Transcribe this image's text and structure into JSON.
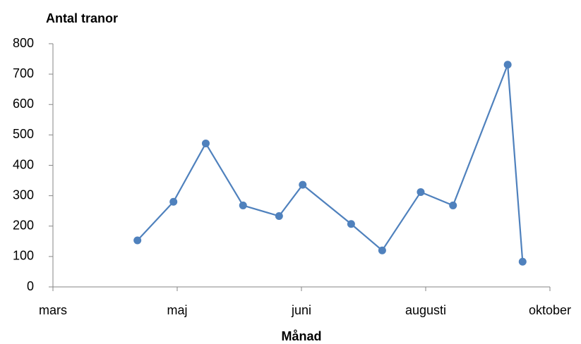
{
  "chart_data": {
    "type": "line",
    "title": "Antal tranor",
    "x_label": "Månad",
    "x": [
      0.68,
      0.97,
      1.23,
      1.53,
      1.82,
      2.01,
      2.4,
      2.65,
      2.96,
      3.22,
      3.66,
      3.78
    ],
    "series": [
      {
        "name": "Antal tranor",
        "color": "#4f81bd",
        "values": [
          153,
          280,
          472,
          268,
          233,
          336,
          207,
          120,
          312,
          268,
          731,
          83
        ]
      }
    ],
    "xlim": [
      0,
      4
    ],
    "xticks": [
      {
        "value": 0,
        "label": "mars"
      },
      {
        "value": 1,
        "label": "maj"
      },
      {
        "value": 2,
        "label": "juni"
      },
      {
        "value": 3,
        "label": "augusti"
      },
      {
        "value": 4,
        "label": "oktober"
      }
    ],
    "ylim": [
      0,
      800
    ],
    "yticks": [
      0,
      100,
      200,
      300,
      400,
      500,
      600,
      700,
      800
    ],
    "grid": false
  }
}
